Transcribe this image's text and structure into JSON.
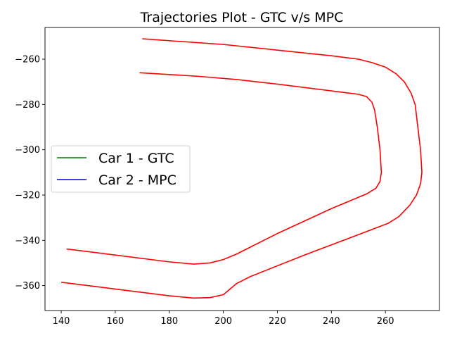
{
  "chart_data": {
    "type": "line",
    "title": "Trajectories Plot - GTC v/s MPC",
    "xlabel": "",
    "ylabel": "",
    "xlim": [
      134,
      280
    ],
    "ylim": [
      -371,
      -246
    ],
    "x_ticks": [
      140,
      160,
      180,
      200,
      220,
      240,
      260
    ],
    "y_ticks": [
      -260,
      -280,
      -300,
      -320,
      -340,
      -360
    ],
    "grid": false,
    "legend": {
      "position": "center-left",
      "entries": [
        {
          "label": "Car 1 - GTC",
          "color": "#008000"
        },
        {
          "label": "Car 2 - MPC",
          "color": "#0000cc"
        }
      ]
    },
    "series": [
      {
        "color": "#ff0000",
        "points": [
          [
            170,
            -251
          ],
          [
            200,
            -253.5
          ],
          [
            220,
            -256
          ],
          [
            240,
            -258.5
          ],
          [
            250,
            -260
          ],
          [
            255,
            -261.5
          ],
          [
            260,
            -263.5
          ],
          [
            264,
            -266.5
          ],
          [
            267,
            -270
          ],
          [
            269.5,
            -275
          ],
          [
            271,
            -280
          ],
          [
            272,
            -290
          ],
          [
            273,
            -300
          ],
          [
            273.5,
            -310
          ],
          [
            273,
            -315
          ],
          [
            271.5,
            -320
          ],
          [
            269,
            -324.5
          ],
          [
            265,
            -329.5
          ],
          [
            261,
            -332.5
          ],
          [
            250,
            -337.5
          ],
          [
            230,
            -346.5
          ],
          [
            210,
            -356
          ],
          [
            205,
            -359
          ],
          [
            200,
            -364
          ],
          [
            195,
            -365.3
          ],
          [
            189,
            -365.5
          ],
          [
            180,
            -364.5
          ],
          [
            160,
            -361.5
          ],
          [
            140,
            -358.5
          ]
        ]
      },
      {
        "color": "#ff0000",
        "points": [
          [
            169,
            -266
          ],
          [
            190,
            -267.5
          ],
          [
            205,
            -269
          ],
          [
            220,
            -271
          ],
          [
            240,
            -274
          ],
          [
            250,
            -275.5
          ],
          [
            253,
            -276.5
          ],
          [
            255,
            -279
          ],
          [
            256,
            -282.5
          ],
          [
            257,
            -290
          ],
          [
            258,
            -300
          ],
          [
            258.5,
            -310
          ],
          [
            258,
            -314
          ],
          [
            256.5,
            -317
          ],
          [
            253,
            -319.5
          ],
          [
            240,
            -326
          ],
          [
            220,
            -337
          ],
          [
            205,
            -346
          ],
          [
            200,
            -348.5
          ],
          [
            195,
            -350
          ],
          [
            189,
            -350.5
          ],
          [
            180,
            -349.5
          ],
          [
            160,
            -346.5
          ],
          [
            142,
            -343.8
          ]
        ]
      },
      {
        "name": "Car 1 - GTC",
        "color": "#008000",
        "points": []
      },
      {
        "name": "Car 2 - MPC",
        "color": "#0000cc",
        "points": []
      }
    ]
  }
}
